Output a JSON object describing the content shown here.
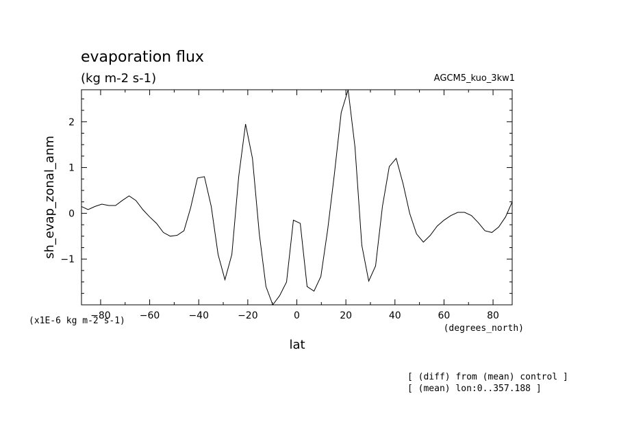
{
  "chart_data": {
    "type": "line",
    "title": "evaporation flux",
    "subtitle": "(kg m-2 s-1)",
    "experiment": "AGCM5_kuo_3kw1",
    "xlabel": "lat",
    "xunit": "(degrees_north)",
    "ylabel": "sh_evap_zonal_anm",
    "yunit": "(x1E-6 kg m-2 s-1)",
    "xlim": [
      -87.8,
      87.8
    ],
    "ylim": [
      -2.0,
      2.7
    ],
    "xticks": [
      -80,
      -60,
      -40,
      -20,
      0,
      20,
      40,
      60,
      80
    ],
    "yticks": [
      -1,
      0,
      1,
      2
    ],
    "grid": false,
    "notes": [
      "[ (diff) from (mean) control ]",
      "[ (mean) lon:0..357.188 ]"
    ],
    "series": [
      {
        "x": [
          -87.8,
          -85.1,
          -82.3,
          -79.5,
          -76.7,
          -73.9,
          -71.2,
          -68.4,
          -65.6,
          -62.8,
          -60.0,
          -57.2,
          -54.4,
          -51.6,
          -48.8,
          -46.0,
          -43.3,
          -40.5,
          -37.7,
          -34.9,
          -32.1,
          -29.3,
          -26.5,
          -23.7,
          -20.9,
          -18.1,
          -15.3,
          -12.6,
          -9.8,
          -7.0,
          -4.2,
          -1.4,
          1.4,
          4.2,
          7.0,
          9.8,
          12.6,
          15.3,
          18.1,
          20.9,
          23.7,
          26.5,
          29.3,
          32.1,
          34.9,
          37.7,
          40.5,
          43.3,
          46.0,
          48.8,
          51.6,
          54.4,
          57.2,
          60.0,
          62.8,
          65.6,
          68.4,
          71.2,
          73.9,
          76.7,
          79.5,
          82.3,
          85.1,
          87.8
        ],
        "y": [
          0.15,
          0.08,
          0.15,
          0.2,
          0.17,
          0.17,
          0.28,
          0.38,
          0.28,
          0.08,
          -0.08,
          -0.22,
          -0.42,
          -0.5,
          -0.48,
          -0.38,
          0.12,
          0.77,
          0.8,
          0.15,
          -0.9,
          -1.45,
          -0.9,
          0.8,
          1.95,
          1.2,
          -0.45,
          -1.6,
          -2.0,
          -1.8,
          -1.5,
          -0.15,
          -0.22,
          -1.6,
          -1.7,
          -1.38,
          -0.35,
          0.85,
          2.2,
          2.7,
          1.45,
          -0.7,
          -1.48,
          -1.15,
          0.15,
          1.02,
          1.2,
          0.65,
          0.0,
          -0.45,
          -0.63,
          -0.48,
          -0.28,
          -0.15,
          -0.05,
          0.02,
          0.02,
          -0.05,
          -0.2,
          -0.38,
          -0.42,
          -0.3,
          -0.08,
          0.25
        ]
      }
    ]
  }
}
